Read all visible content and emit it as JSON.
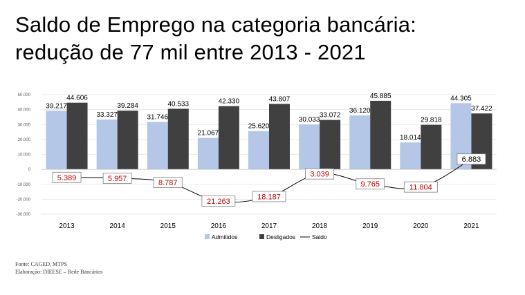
{
  "title_line1": "Saldo de Emprego na categoria bancária:",
  "title_line2": "redução de 77 mil entre 2013  - 2021",
  "source_line1": "Fonte: CAGED, MTPS",
  "source_line2": "Elaboração: DIEESE – Rede Bancários",
  "chart_data": {
    "type": "bar",
    "categories": [
      "2013",
      "2014",
      "2015",
      "2016",
      "2017",
      "2018",
      "2019",
      "2020",
      "2021"
    ],
    "series": [
      {
        "name": "Admitidos",
        "type": "bar",
        "color": "#b4c7e7",
        "values": [
          39217,
          33327,
          31746,
          21067,
          25620,
          30033,
          36120,
          18014,
          44305
        ],
        "labels": [
          "39.217",
          "33.327",
          "31.746",
          "21.067",
          "25.620",
          "30.033",
          "36.120",
          "18.014",
          "44.305"
        ]
      },
      {
        "name": "Desligados",
        "type": "bar",
        "color": "#404040",
        "values": [
          44606,
          39284,
          40533,
          42330,
          43807,
          33072,
          45885,
          29818,
          37422
        ],
        "labels": [
          "44.606",
          "39.284",
          "40.533",
          "42.330",
          "43.807",
          "33.072",
          "45.885",
          "29.818",
          "37.422"
        ]
      },
      {
        "name": "Saldo",
        "type": "line",
        "color": "#000000",
        "values": [
          -5389,
          -5957,
          -8787,
          -21263,
          -18187,
          -3039,
          -9765,
          -11804,
          6883
        ],
        "labels": [
          "5.389",
          "5.957",
          "8.787",
          "21.263",
          "18.187",
          "3.039",
          "9.765",
          "11.804",
          "6.883"
        ],
        "negative_label_color": "#c00000",
        "positive_label_color": "#000000"
      }
    ],
    "y_ticks": [
      50000,
      40000,
      30000,
      20000,
      10000,
      0,
      -10000,
      -20000,
      -30000
    ],
    "y_tick_labels": [
      "50.000",
      "40.000",
      "30.000",
      "20.000",
      "10.000",
      "0",
      "-10.000",
      "-20.000",
      "-30.000"
    ],
    "ylim": [
      -30000,
      50000
    ],
    "grid": true,
    "legend_position": "bottom"
  }
}
